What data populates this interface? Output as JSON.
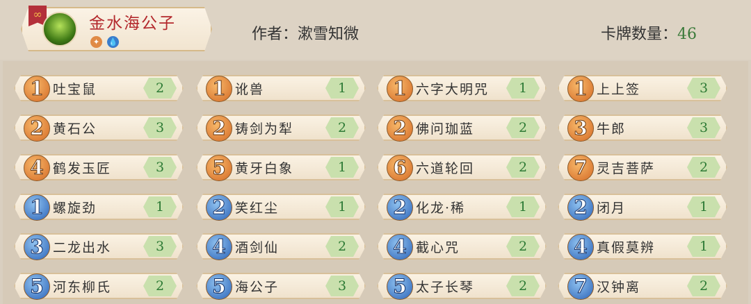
{
  "header": {
    "deck_name": "金水海公子",
    "author": "作者：漱雪知微",
    "count_label": "卡牌数量：",
    "count": "46",
    "elements": [
      "fire-element-icon",
      "water-element-icon"
    ]
  },
  "colors": {
    "orange": "#d46a25",
    "blue": "#2c64b8",
    "deck_name": "#b3282c",
    "count": "#2d7a35"
  },
  "cards": [
    [
      {
        "cost": "1",
        "name": "吐宝鼠",
        "qty": "2",
        "c": "orange"
      },
      {
        "cost": "1",
        "name": "讹兽",
        "qty": "1",
        "c": "orange"
      },
      {
        "cost": "1",
        "name": "六字大明咒",
        "qty": "1",
        "c": "orange"
      },
      {
        "cost": "1",
        "name": "上上签",
        "qty": "3",
        "c": "orange"
      }
    ],
    [
      {
        "cost": "2",
        "name": "黄石公",
        "qty": "3",
        "c": "orange"
      },
      {
        "cost": "2",
        "name": "铸剑为犁",
        "qty": "2",
        "c": "orange"
      },
      {
        "cost": "2",
        "name": "佛问珈蓝",
        "qty": "2",
        "c": "orange"
      },
      {
        "cost": "3",
        "name": "牛郎",
        "qty": "3",
        "c": "orange"
      }
    ],
    [
      {
        "cost": "4",
        "name": "鹤发玉匠",
        "qty": "3",
        "c": "orange"
      },
      {
        "cost": "5",
        "name": "黄牙白象",
        "qty": "1",
        "c": "orange"
      },
      {
        "cost": "6",
        "name": "六道轮回",
        "qty": "2",
        "c": "orange"
      },
      {
        "cost": "7",
        "name": "灵吉菩萨",
        "qty": "2",
        "c": "orange"
      }
    ],
    [
      {
        "cost": "1",
        "name": "螺旋劲",
        "qty": "1",
        "c": "blue"
      },
      {
        "cost": "2",
        "name": "笑红尘",
        "qty": "1",
        "c": "blue"
      },
      {
        "cost": "2",
        "name": "化龙·稀",
        "qty": "1",
        "c": "blue"
      },
      {
        "cost": "2",
        "name": "闭月",
        "qty": "1",
        "c": "blue"
      }
    ],
    [
      {
        "cost": "3",
        "name": "二龙出水",
        "qty": "3",
        "c": "blue"
      },
      {
        "cost": "4",
        "name": "酒剑仙",
        "qty": "2",
        "c": "blue"
      },
      {
        "cost": "4",
        "name": "截心咒",
        "qty": "2",
        "c": "blue"
      },
      {
        "cost": "4",
        "name": "真假莫辨",
        "qty": "1",
        "c": "blue"
      }
    ],
    [
      {
        "cost": "5",
        "name": "河东柳氏",
        "qty": "2",
        "c": "blue"
      },
      {
        "cost": "5",
        "name": "海公子",
        "qty": "3",
        "c": "blue"
      },
      {
        "cost": "5",
        "name": "太子长琴",
        "qty": "2",
        "c": "blue"
      },
      {
        "cost": "7",
        "name": "汉钟离",
        "qty": "2",
        "c": "blue"
      }
    ]
  ]
}
